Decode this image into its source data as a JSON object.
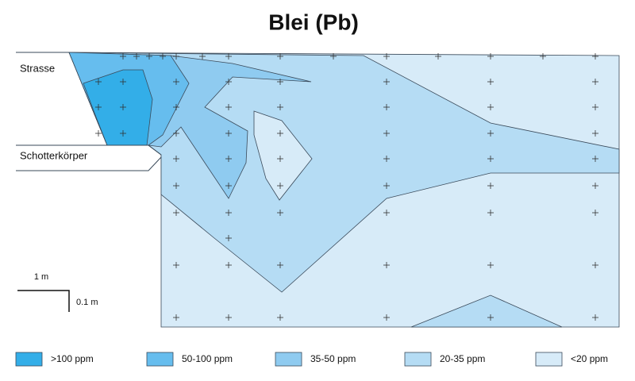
{
  "title": "Blei (Pb)",
  "labels": {
    "road": "Strasse",
    "gravel": "Schotterkörper"
  },
  "scale": {
    "horizontal": "1 m",
    "vertical": "0.1 m"
  },
  "legend": [
    {
      "label": ">100 ppm",
      "color": "#33aee8"
    },
    {
      "label": "50-100 ppm",
      "color": "#66bdee"
    },
    {
      "label": "35-50 ppm",
      "color": "#8fcbf0"
    },
    {
      "label": "20-35 ppm",
      "color": "#b5dcf4"
    },
    {
      "label": "<20 ppm",
      "color": "#d7ebf8"
    }
  ]
}
